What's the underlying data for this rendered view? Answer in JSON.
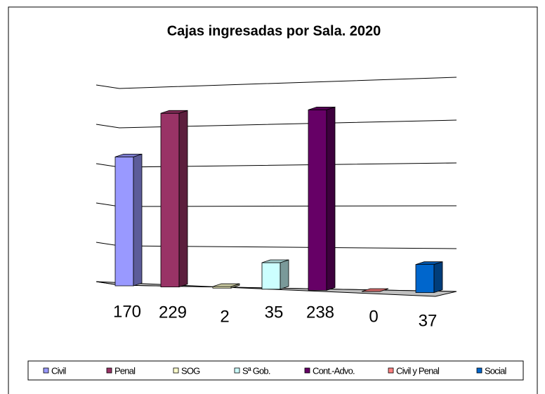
{
  "chart_data": {
    "type": "bar3d",
    "title": "Cajas ingresadas por Sala. 2020",
    "categories": [
      "Civil",
      "Penal",
      "SOG",
      "Sª Gob.",
      "Cont.-Advo.",
      "Civil y Penal",
      "Social"
    ],
    "values": [
      170,
      229,
      2,
      35,
      238,
      0,
      37
    ],
    "colors": [
      "#9999ff",
      "#993366",
      "#ffffcc",
      "#ccffff",
      "#660066",
      "#ff8080",
      "#0066cc"
    ],
    "ylim": [
      0,
      250
    ],
    "yticks": [
      0,
      50,
      100,
      150,
      200,
      250
    ],
    "grid": true,
    "legend": "bottom"
  }
}
